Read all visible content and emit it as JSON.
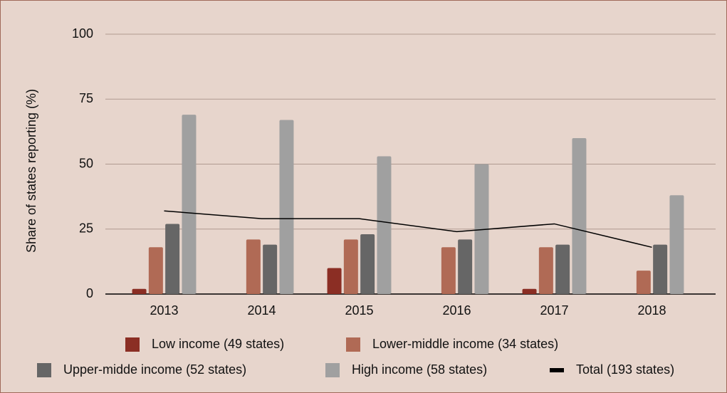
{
  "chart_data": {
    "type": "bar",
    "y_label": "Share of states reporting (%)",
    "categories": [
      "2013",
      "2014",
      "2015",
      "2016",
      "2017",
      "2018"
    ],
    "series": [
      {
        "name": "Low income (49 states)",
        "color": "#8b2e24",
        "values": [
          2,
          0,
          10,
          0,
          2,
          0
        ]
      },
      {
        "name": "Lower-middle income (34 states)",
        "color": "#b06a55",
        "values": [
          18,
          21,
          21,
          18,
          18,
          9
        ]
      },
      {
        "name": "Upper-midde income (52 states)",
        "color": "#666666",
        "values": [
          27,
          19,
          23,
          21,
          19,
          19
        ]
      },
      {
        "name": "High income (58 states)",
        "color": "#a0a0a0",
        "values": [
          69,
          67,
          53,
          50,
          60,
          38
        ]
      },
      {
        "name": "Total (193 states)",
        "color": "#000000",
        "type": "line",
        "values": [
          32,
          29,
          29,
          24,
          27,
          18
        ]
      }
    ],
    "ylim": [
      0,
      100
    ],
    "yticks": [
      0,
      25,
      50,
      75,
      100
    ],
    "grid": true
  }
}
